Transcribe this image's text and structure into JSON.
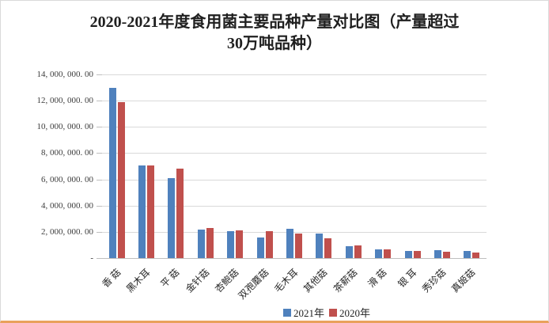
{
  "colors": {
    "series_2021": "#4F81BD",
    "series_2020": "#C0504D",
    "gridline": "#D9D9D9",
    "axis_line": "#BFBFBF",
    "frame_border": "#D9D9D9",
    "frame_bottom_border": "#E9A15C"
  },
  "y_axis": {
    "max": 14000000,
    "min": 0,
    "step": 2000000,
    "tick_labels": [
      "14, 000, 000. 00",
      "12, 000, 000. 00",
      "10, 000, 000. 00",
      "8, 000, 000. 00",
      "6, 000, 000. 00",
      "4, 000, 000. 00",
      "2, 000, 000. 00",
      "-"
    ]
  },
  "chart_data": {
    "type": "bar",
    "title": "2020-2021年度食用菌主要品种产量对比图（产量超过30万吨品种）",
    "xlabel": "",
    "ylabel": "",
    "ylim": [
      0,
      14000000
    ],
    "grid": true,
    "legend_position": "bottom",
    "categories": [
      "香 菇",
      "黑木耳",
      "平 菇",
      "金针菇",
      "杏鲍菇",
      "双孢蘑菇",
      "毛木耳",
      "其他菇",
      "茶薪菇",
      "滑 菇",
      "银 耳",
      "秀珍菇",
      "真姬菇"
    ],
    "series": [
      {
        "name": "2021年",
        "color": "#4F81BD",
        "values": [
          12970000,
          7060000,
          6080000,
          2200000,
          2060000,
          1560000,
          2250000,
          1880000,
          920000,
          650000,
          520000,
          600000,
          550000
        ]
      },
      {
        "name": "2020年",
        "color": "#C0504D",
        "values": [
          11880000,
          7050000,
          6820000,
          2300000,
          2120000,
          2050000,
          1890000,
          1500000,
          940000,
          660000,
          550000,
          460000,
          420000
        ]
      }
    ]
  }
}
